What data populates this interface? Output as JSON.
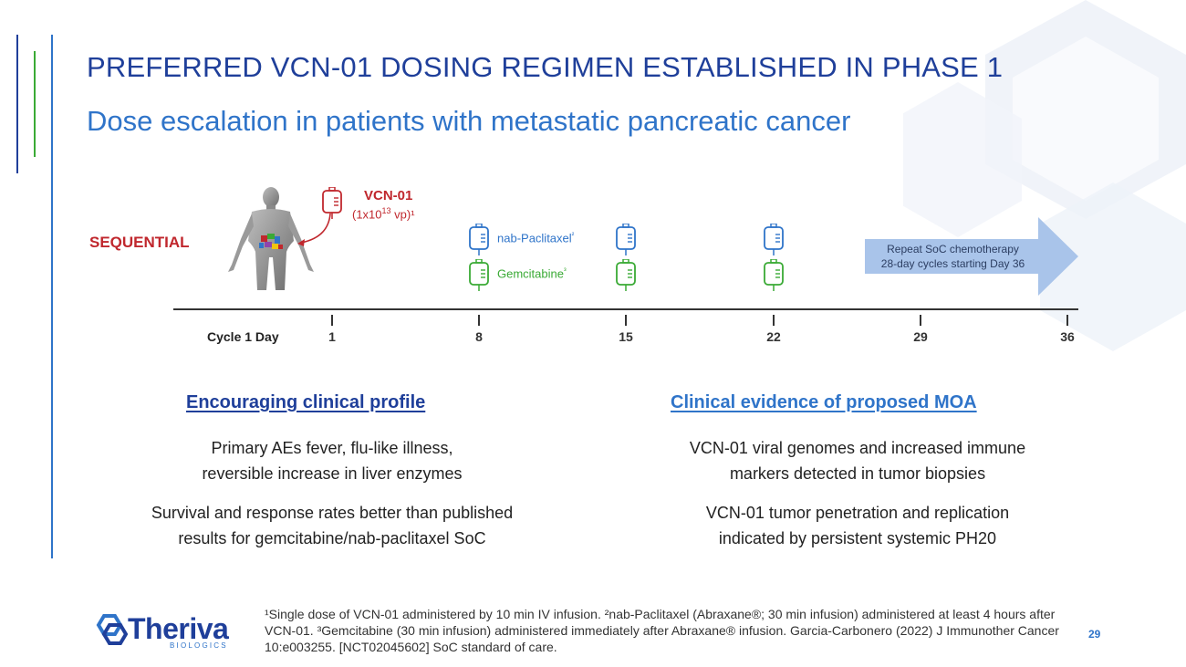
{
  "header": {
    "title": "PREFERRED VCN-01 DOSING REGIMEN ESTABLISHED IN PHASE 1",
    "subtitle": "Dose escalation in patients with metastatic pancreatic cancer"
  },
  "diagram": {
    "regimen_label": "SEQUENTIAL",
    "vcn01": {
      "name": "VCN-01",
      "dose_prefix": "(1x10",
      "dose_exp": "13",
      "dose_suffix": " vp)¹"
    },
    "nab_paclitaxel": {
      "name": "nab-Paclitaxel",
      "mark": "²"
    },
    "gemcitabine": {
      "name": "Gemcitabine",
      "mark": "³"
    },
    "arrow_text": [
      "Repeat SoC chemotherapy",
      "28-day cycles starting Day 36"
    ],
    "axis_label": "Cycle 1 Day",
    "days": [
      "1",
      "8",
      "15",
      "22",
      "29",
      "36"
    ],
    "colors": {
      "vcn": "#c0272d",
      "paclitaxel": "#2f74c9",
      "gemcitabine": "#3aaa35",
      "arrow": "#a9c4ea"
    }
  },
  "left_column": {
    "heading": "Encouraging clinical profile",
    "points": [
      [
        "Primary AEs fever, flu-like illness,",
        "reversible increase in liver enzymes"
      ],
      [
        "Survival and response rates better than published",
        "results for gemcitabine/nab-paclitaxel SoC"
      ]
    ]
  },
  "right_column": {
    "heading": "Clinical evidence of proposed MOA",
    "points": [
      [
        "VCN-01 viral genomes and increased immune",
        "markers detected in tumor biopsies"
      ],
      [
        "VCN-01 tumor penetration and replication",
        "indicated by persistent systemic PH20"
      ]
    ]
  },
  "footer": {
    "footnote": "¹Single dose of VCN-01 administered by 10 min IV infusion. ²nab-Paclitaxel (Abraxane®; 30 min infusion) administered at least 4 hours after VCN-01. ³Gemcitabine (30 min infusion) administered immediately after Abraxane® infusion. Garcia-Carbonero (2022) J Immunother Cancer 10:e003255. [NCT02045602] SoC standard of care.",
    "logo_name": "Theriva",
    "logo_sub": "BIOLOGICS",
    "page_number": "29"
  }
}
